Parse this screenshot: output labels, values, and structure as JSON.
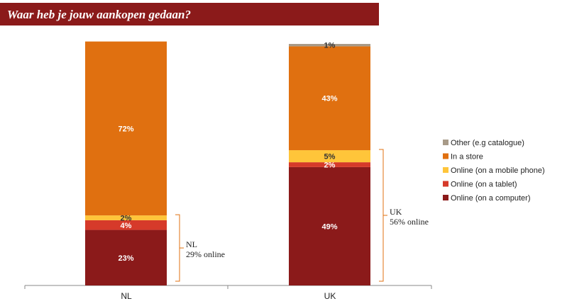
{
  "title": "Waar heb je jouw aankopen gedaan?",
  "colors": {
    "title_bar": "#8b1a1a",
    "other": "#a89a88",
    "in_store": "#e07010",
    "mobile": "#ffc53a",
    "tablet": "#d63a2a",
    "computer": "#8b1a1a",
    "bracket": "#e07010"
  },
  "chart_data": {
    "type": "bar",
    "stacked": true,
    "categories": [
      "NL",
      "UK"
    ],
    "ylim": [
      0,
      100
    ],
    "grid": false,
    "legend_position": "right",
    "series": [
      {
        "name": "Online (on a computer)",
        "color": "#8b1a1a",
        "values": [
          23,
          49
        ],
        "labels": [
          "23%",
          "49%"
        ]
      },
      {
        "name": "Online (on a tablet)",
        "color": "#d63a2a",
        "values": [
          4,
          2
        ],
        "labels": [
          "4%",
          "2%"
        ]
      },
      {
        "name": "Online (on a mobile phone)",
        "color": "#ffc53a",
        "values": [
          2,
          5
        ],
        "labels": [
          "2%",
          "5%"
        ]
      },
      {
        "name": "In a store",
        "color": "#e07010",
        "values": [
          72,
          43
        ],
        "labels": [
          "72%",
          "43%"
        ]
      },
      {
        "name": "Other (e.g catalogue)",
        "color": "#a89a88",
        "values": [
          0,
          1
        ],
        "labels": [
          "",
          "1%"
        ]
      }
    ],
    "legend_order": [
      "Other (e.g catalogue)",
      "In a store",
      "Online (on a mobile phone)",
      "Online (on a tablet)",
      "Online (on a computer)"
    ],
    "annotations": [
      {
        "category": "NL",
        "line1": "NL",
        "line2": "29% online"
      },
      {
        "category": "UK",
        "line1": "UK",
        "line2": "56% online"
      }
    ]
  }
}
